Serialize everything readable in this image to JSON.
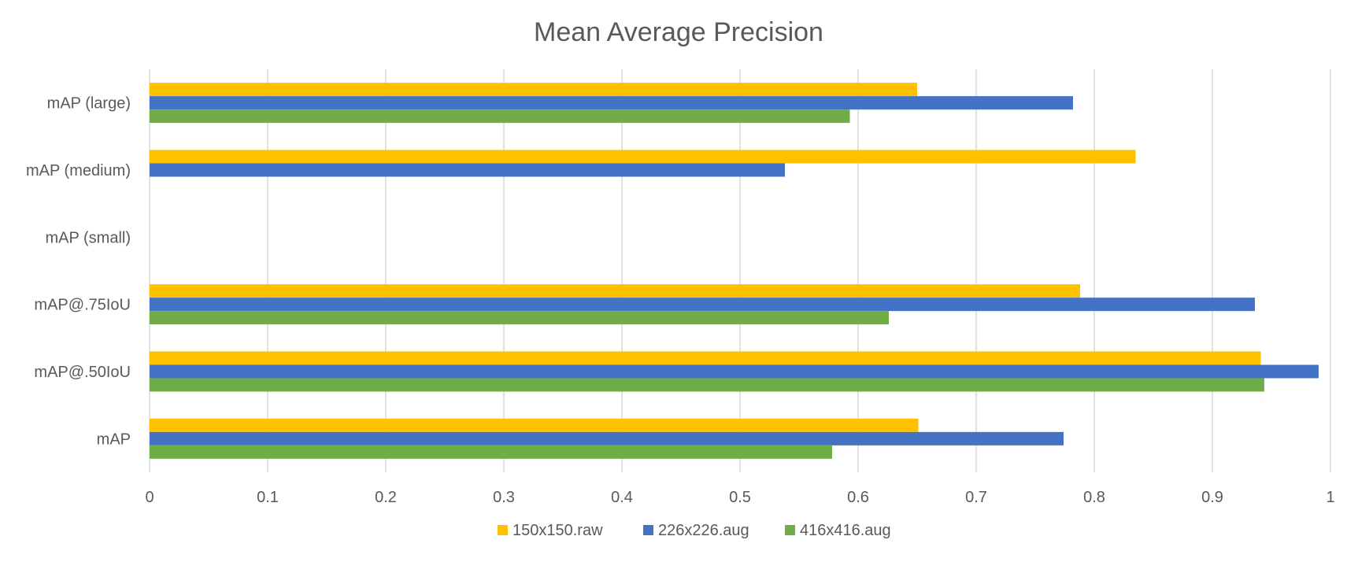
{
  "chart_data": {
    "type": "bar",
    "orientation": "horizontal",
    "title": "Mean Average Precision",
    "xlabel": "",
    "ylabel": "",
    "xlim": [
      0,
      1
    ],
    "x_ticks": [
      "0",
      "0.1",
      "0.2",
      "0.3",
      "0.4",
      "0.5",
      "0.6",
      "0.7",
      "0.8",
      "0.9",
      "1"
    ],
    "categories": [
      "mAP",
      "mAP@.50IoU",
      "mAP@.75IoU",
      "mAP (small)",
      "mAP (medium)",
      "mAP (large)"
    ],
    "series": [
      {
        "name": "150x150.raw",
        "color": "#FFC000",
        "values": [
          0.651,
          0.941,
          0.788,
          0,
          0.835,
          0.65
        ]
      },
      {
        "name": "226x226.aug",
        "color": "#4472C4",
        "values": [
          0.774,
          0.99,
          0.936,
          0,
          0.538,
          0.782
        ]
      },
      {
        "name": "416x416.aug",
        "color": "#70AD47",
        "values": [
          0.578,
          0.944,
          0.626,
          0,
          0,
          0.593
        ]
      }
    ],
    "grid": "vertical",
    "legend_position": "bottom"
  }
}
